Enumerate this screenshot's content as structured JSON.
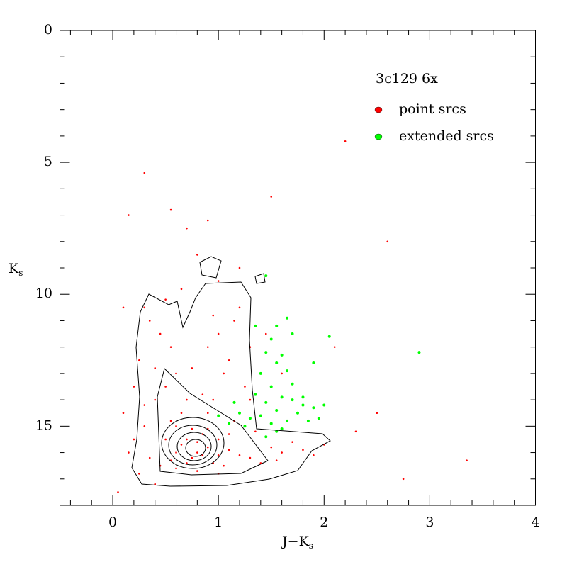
{
  "chart_data": {
    "type": "scatter",
    "xlabel": {
      "text": "J−K",
      "subscript": "s"
    },
    "ylabel": {
      "text": "K",
      "subscript": "s"
    },
    "legend_title": "3c129 6x",
    "legend": "top-right",
    "xlim": [
      -0.5,
      4
    ],
    "ylim": [
      0,
      18
    ],
    "y_inverted": true,
    "xticks": [
      0,
      1,
      2,
      3,
      4
    ],
    "yticks": [
      0,
      5,
      10,
      15
    ],
    "xminorticks": [
      -0.4,
      -0.2,
      0.2,
      0.4,
      0.6,
      0.8,
      1.2,
      1.4,
      1.6,
      1.8,
      2.2,
      2.4,
      2.6,
      2.8,
      3.2,
      3.4,
      3.6,
      3.8
    ],
    "yminorticks": [
      1,
      2,
      3,
      4,
      6,
      7,
      8,
      9,
      11,
      12,
      13,
      14,
      16,
      17
    ],
    "series": [
      {
        "name": "point srcs",
        "color": "#ff0000",
        "x": [
          0.7,
          0.8,
          0.9,
          0.75,
          0.85,
          0.6,
          0.65,
          0.7,
          1.0,
          1.1,
          1.2,
          0.55,
          0.5,
          0.95,
          1.05,
          1.3,
          1.4,
          0.45,
          0.6,
          0.8,
          1.0,
          0.35,
          0.3,
          0.4,
          0.5,
          0.6,
          0.55,
          0.45,
          0.35,
          0.3,
          0.25,
          0.2,
          0.2,
          0.25,
          0.9,
          1.0,
          1.1,
          0.95,
          1.15,
          1.2,
          1.05,
          1.3,
          1.25,
          0.85,
          0.75,
          0.9,
          1.15,
          1.35,
          1.5,
          1.6,
          1.7,
          1.8,
          1.9,
          2.0,
          1.55,
          0.65,
          0.8,
          1.0,
          0.7,
          1.2,
          0.5,
          0.4,
          0.3,
          0.15,
          0.1,
          0.15,
          0.3,
          0.55,
          0.9,
          1.5,
          2.2,
          2.6,
          2.1,
          1.6,
          1.45,
          1.3,
          2.3,
          2.5,
          2.75,
          3.35,
          0.05,
          0.4,
          0.1,
          0.6,
          0.7,
          0.85,
          0.8,
          0.75,
          0.9,
          1.0,
          0.65,
          0.55,
          1.1,
          0.95
        ],
        "values": [
          15.5,
          16,
          15.8,
          16.2,
          15.3,
          15,
          14.5,
          14,
          15.5,
          15.9,
          16.1,
          16.3,
          15.5,
          16.4,
          16.5,
          16.2,
          16.4,
          16.5,
          16.6,
          16.7,
          16.8,
          16.2,
          15,
          14,
          13.5,
          13,
          12,
          11.5,
          11,
          10.5,
          12.5,
          13.5,
          15.5,
          16.8,
          12,
          11.5,
          12.5,
          10.8,
          11,
          10.5,
          13,
          14,
          13.5,
          13.8,
          12.8,
          14.5,
          14.8,
          15.2,
          15.8,
          16.0,
          15.6,
          15.9,
          16.1,
          15.7,
          16.3,
          9.8,
          8.5,
          9.5,
          7.5,
          9.0,
          10.2,
          12.8,
          14.2,
          16,
          14.5,
          7,
          5.4,
          6.8,
          7.2,
          6.3,
          4.2,
          8,
          12,
          13,
          11.5,
          12,
          15.2,
          14.5,
          17,
          16.3,
          17.5,
          17.2,
          10.5,
          16.0,
          16.4,
          16.1,
          15.6,
          15.1,
          15.1,
          16.1,
          15.7,
          14.8,
          15.3,
          14.0
        ]
      },
      {
        "name": "extended srcs",
        "color": "#00ff00",
        "x": [
          1.45,
          1.55,
          1.65,
          1.7,
          2.05,
          1.45,
          1.55,
          1.6,
          1.4,
          1.5,
          1.65,
          1.9,
          1.35,
          1.45,
          1.55,
          1.6,
          1.7,
          1.75,
          1.8,
          1.9,
          1.95,
          2.0,
          1.85,
          1.5,
          1.6,
          1.4,
          1.3,
          1.2,
          1.1,
          1.0,
          1.15,
          1.55,
          1.7,
          1.5,
          1.35,
          2.9,
          1.45,
          1.8,
          1.65,
          1.25
        ],
        "values": [
          9.3,
          11.2,
          10.9,
          11.5,
          11.6,
          12.2,
          12.6,
          12.3,
          13,
          13.5,
          12.9,
          12.6,
          13.8,
          14.1,
          14.4,
          13.9,
          14.0,
          14.5,
          13.9,
          14.3,
          14.7,
          14.2,
          14.8,
          14.9,
          15.1,
          14.6,
          14.7,
          14.5,
          14.9,
          14.6,
          14.1,
          15.2,
          13.4,
          11.7,
          11.2,
          12.2,
          15.4,
          14.2,
          14.8,
          15.0
        ]
      }
    ]
  }
}
